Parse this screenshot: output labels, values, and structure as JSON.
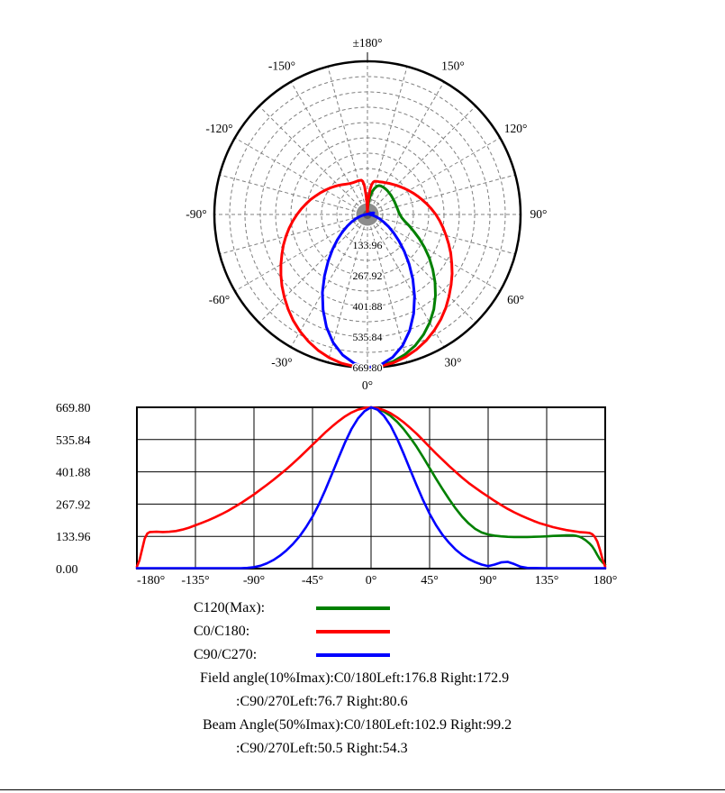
{
  "colors": {
    "green": "#008000",
    "red": "#ff0000",
    "blue": "#0000ff",
    "grid_gray": "#7f7f7f",
    "axis_black": "#000000",
    "hub_gray": "#8c8c8c",
    "hub_dark": "#5f5f5f"
  },
  "chart_data": {
    "series": [
      {
        "name": "C120(Max)",
        "color_key": "green",
        "points": [
          [
            0,
            669.8
          ],
          [
            5,
            664
          ],
          [
            10,
            652
          ],
          [
            15,
            634
          ],
          [
            20,
            610
          ],
          [
            25,
            580
          ],
          [
            30,
            545
          ],
          [
            35,
            506
          ],
          [
            40,
            463
          ],
          [
            45,
            418
          ],
          [
            50,
            373
          ],
          [
            55,
            330
          ],
          [
            60,
            288
          ],
          [
            65,
            250
          ],
          [
            70,
            216
          ],
          [
            75,
            188
          ],
          [
            80,
            165
          ],
          [
            85,
            150
          ],
          [
            90,
            142
          ],
          [
            95,
            137
          ],
          [
            100,
            134
          ],
          [
            105,
            132
          ],
          [
            110,
            131
          ],
          [
            115,
            131
          ],
          [
            120,
            131
          ],
          [
            125,
            132
          ],
          [
            130,
            133
          ],
          [
            135,
            134
          ],
          [
            140,
            136
          ],
          [
            145,
            137
          ],
          [
            150,
            138
          ],
          [
            155,
            138
          ],
          [
            158,
            136
          ],
          [
            160,
            133
          ],
          [
            162,
            128
          ],
          [
            165,
            118
          ],
          [
            168,
            104
          ],
          [
            170,
            92
          ],
          [
            172,
            76
          ],
          [
            174,
            56
          ],
          [
            176,
            38
          ],
          [
            178,
            26
          ],
          [
            180,
            16
          ]
        ]
      },
      {
        "name": "C0/C180",
        "color_key": "red",
        "points": [
          [
            -180,
            8
          ],
          [
            -178,
            35
          ],
          [
            -176,
            80
          ],
          [
            -174,
            125
          ],
          [
            -172,
            146
          ],
          [
            -170,
            152
          ],
          [
            -165,
            153
          ],
          [
            -160,
            152
          ],
          [
            -155,
            153
          ],
          [
            -150,
            156
          ],
          [
            -145,
            162
          ],
          [
            -140,
            170
          ],
          [
            -135,
            180
          ],
          [
            -130,
            190
          ],
          [
            -125,
            201
          ],
          [
            -120,
            213
          ],
          [
            -115,
            226
          ],
          [
            -110,
            240
          ],
          [
            -105,
            256
          ],
          [
            -100,
            272
          ],
          [
            -95,
            290
          ],
          [
            -90,
            308
          ],
          [
            -85,
            328
          ],
          [
            -80,
            348
          ],
          [
            -75,
            369
          ],
          [
            -70,
            391
          ],
          [
            -65,
            413
          ],
          [
            -60,
            437
          ],
          [
            -55,
            462
          ],
          [
            -50,
            488
          ],
          [
            -45,
            514
          ],
          [
            -40,
            540
          ],
          [
            -35,
            566
          ],
          [
            -30,
            590
          ],
          [
            -25,
            612
          ],
          [
            -20,
            632
          ],
          [
            -15,
            648
          ],
          [
            -10,
            660
          ],
          [
            -5,
            667
          ],
          [
            0,
            669.8
          ],
          [
            5,
            666
          ],
          [
            10,
            658
          ],
          [
            15,
            645
          ],
          [
            20,
            628
          ],
          [
            25,
            608
          ],
          [
            30,
            585
          ],
          [
            35,
            560
          ],
          [
            40,
            533
          ],
          [
            45,
            505
          ],
          [
            50,
            478
          ],
          [
            55,
            452
          ],
          [
            60,
            426
          ],
          [
            65,
            402
          ],
          [
            70,
            378
          ],
          [
            75,
            356
          ],
          [
            80,
            336
          ],
          [
            85,
            317
          ],
          [
            90,
            299
          ],
          [
            95,
            281
          ],
          [
            100,
            264
          ],
          [
            105,
            248
          ],
          [
            110,
            234
          ],
          [
            115,
            221
          ],
          [
            120,
            209
          ],
          [
            125,
            198
          ],
          [
            130,
            188
          ],
          [
            135,
            180
          ],
          [
            140,
            172
          ],
          [
            145,
            166
          ],
          [
            150,
            160
          ],
          [
            155,
            156
          ],
          [
            160,
            152
          ],
          [
            165,
            150
          ],
          [
            168,
            148
          ],
          [
            170,
            143
          ],
          [
            172,
            132
          ],
          [
            174,
            112
          ],
          [
            176,
            78
          ],
          [
            178,
            38
          ],
          [
            180,
            8
          ]
        ]
      },
      {
        "name": "C90/C270",
        "color_key": "blue",
        "points": [
          [
            -180,
            2
          ],
          [
            -150,
            2
          ],
          [
            -120,
            2
          ],
          [
            -100,
            2
          ],
          [
            -95,
            3
          ],
          [
            -90,
            6
          ],
          [
            -85,
            12
          ],
          [
            -80,
            22
          ],
          [
            -75,
            36
          ],
          [
            -70,
            54
          ],
          [
            -65,
            76
          ],
          [
            -60,
            102
          ],
          [
            -55,
            134
          ],
          [
            -50,
            172
          ],
          [
            -45,
            216
          ],
          [
            -40,
            268
          ],
          [
            -35,
            328
          ],
          [
            -30,
            394
          ],
          [
            -25,
            460
          ],
          [
            -20,
            524
          ],
          [
            -15,
            580
          ],
          [
            -10,
            624
          ],
          [
            -5,
            654
          ],
          [
            0,
            669.8
          ],
          [
            5,
            660
          ],
          [
            10,
            634
          ],
          [
            15,
            594
          ],
          [
            20,
            540
          ],
          [
            25,
            478
          ],
          [
            30,
            412
          ],
          [
            35,
            346
          ],
          [
            40,
            284
          ],
          [
            45,
            228
          ],
          [
            50,
            180
          ],
          [
            55,
            140
          ],
          [
            60,
            107
          ],
          [
            65,
            79
          ],
          [
            70,
            57
          ],
          [
            75,
            40
          ],
          [
            80,
            27
          ],
          [
            85,
            17
          ],
          [
            90,
            10
          ],
          [
            95,
            17
          ],
          [
            100,
            26
          ],
          [
            105,
            28
          ],
          [
            110,
            19
          ],
          [
            115,
            8
          ],
          [
            120,
            3
          ],
          [
            135,
            2
          ],
          [
            160,
            2
          ],
          [
            180,
            2
          ]
        ]
      }
    ],
    "polar": {
      "type": "polar",
      "rmax": 669.8,
      "ring_count": 10,
      "spoke_step_deg": 15,
      "ring_labels": [
        {
          "value": 133.96,
          "label": "133.96"
        },
        {
          "value": 267.92,
          "label": "267.92"
        },
        {
          "value": 401.88,
          "label": "401.88"
        },
        {
          "value": 535.84,
          "label": "535.84"
        },
        {
          "value": 669.8,
          "label": "669.80"
        }
      ],
      "angle_labels": [
        {
          "deg": 180,
          "label": "±180°"
        },
        {
          "deg": 150,
          "label": "150°"
        },
        {
          "deg": 120,
          "label": "120°"
        },
        {
          "deg": 90,
          "label": "90°"
        },
        {
          "deg": 60,
          "label": "60°"
        },
        {
          "deg": 30,
          "label": "30°"
        },
        {
          "deg": 0,
          "label": "0°"
        },
        {
          "deg": -30,
          "label": "-30°"
        },
        {
          "deg": -60,
          "label": "-60°"
        },
        {
          "deg": -90,
          "label": "-90°"
        },
        {
          "deg": -120,
          "label": "-120°"
        },
        {
          "deg": -150,
          "label": "-150°"
        }
      ]
    },
    "cartesian": {
      "type": "line",
      "xlim": [
        -180,
        180
      ],
      "ylim": [
        0,
        669.8
      ],
      "x_ticks": [
        {
          "deg": -180,
          "label": "-180°"
        },
        {
          "deg": -135,
          "label": "-135°"
        },
        {
          "deg": -90,
          "label": "-90°"
        },
        {
          "deg": -45,
          "label": "-45°"
        },
        {
          "deg": 0,
          "label": "0°"
        },
        {
          "deg": 45,
          "label": "45°"
        },
        {
          "deg": 90,
          "label": "90°"
        },
        {
          "deg": 135,
          "label": "135°"
        },
        {
          "deg": 180,
          "label": "180°"
        }
      ],
      "y_ticks": [
        {
          "value": 669.8,
          "label": "669.80"
        },
        {
          "value": 535.84,
          "label": "535.84"
        },
        {
          "value": 401.88,
          "label": "401.88"
        },
        {
          "value": 267.92,
          "label": "267.92"
        },
        {
          "value": 133.96,
          "label": "133.96"
        },
        {
          "value": 0,
          "label": "0.00"
        }
      ]
    }
  },
  "legend": {
    "items": [
      {
        "label": "C120(Max):",
        "color_key": "green"
      },
      {
        "label": "C0/C180:",
        "color_key": "red"
      },
      {
        "label": "C90/C270:",
        "color_key": "blue"
      }
    ]
  },
  "annotations": {
    "line1": "Field angle(10%Imax):C0/180Left:176.8 Right:172.9",
    "line2": ":C90/270Left:76.7 Right:80.6",
    "line3": "Beam Angle(50%Imax):C0/180Left:102.9 Right:99.2",
    "line4": ":C90/270Left:50.5 Right:54.3"
  }
}
